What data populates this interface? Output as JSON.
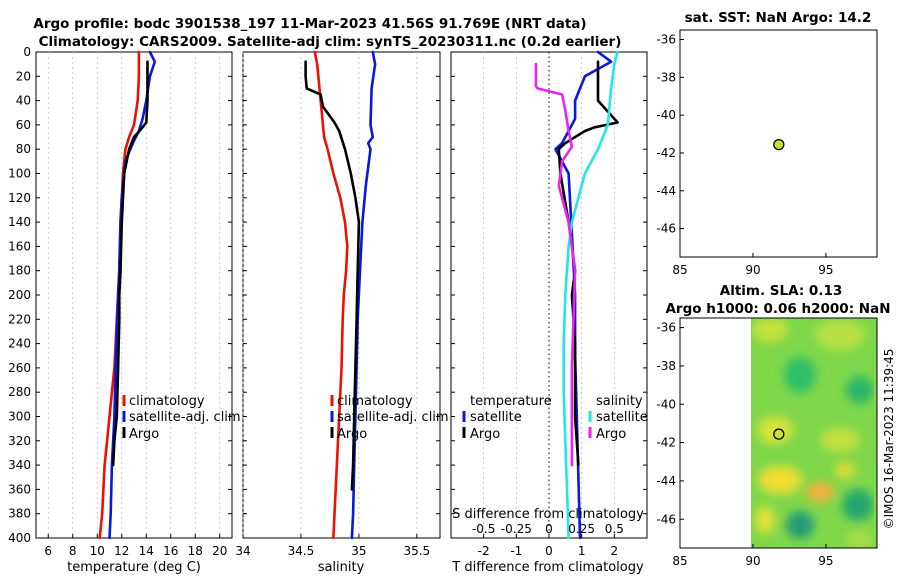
{
  "title": {
    "line1": "Argo profile: bodc 3901538_197 11-Mar-2023 41.56S 91.769E (NRT data)",
    "line2": "Climatology: CARS2009. Satellite-adj clim: synTS_20230311.nc (0.2d earlier)"
  },
  "colors": {
    "climatology": "#ee1100",
    "satellite": "#0a17dd",
    "argo": "#000000",
    "sat_salinity": "#22e6e6",
    "argo_salinity": "#ee22ee"
  },
  "chart_data": [
    {
      "type": "line",
      "name": "temperature-profile",
      "xlabel": "temperature (deg C)",
      "xlim": [
        5,
        21
      ],
      "ylim": [
        400,
        0
      ],
      "xticks": [
        "6",
        "8",
        "10",
        "12",
        "14",
        "16",
        "18",
        "20"
      ],
      "xtick_values": [
        6,
        8,
        10,
        12,
        14,
        16,
        18,
        20
      ],
      "yticks": [
        "0",
        "20",
        "40",
        "60",
        "80",
        "100",
        "120",
        "140",
        "160",
        "180",
        "200",
        "220",
        "240",
        "260",
        "280",
        "300",
        "320",
        "340",
        "360",
        "380",
        "400"
      ],
      "ytick_values": [
        0,
        20,
        40,
        60,
        80,
        100,
        120,
        140,
        160,
        180,
        200,
        220,
        240,
        260,
        280,
        300,
        320,
        340,
        360,
        380,
        400
      ],
      "legend": [
        "climatology",
        "satellite-adj. clim",
        "Argo"
      ],
      "series": [
        {
          "name": "climatology",
          "color": "#ee1100",
          "x": [
            13.4,
            13.4,
            13.3,
            13.0,
            12.6,
            12.3,
            12.1,
            11.9,
            11.8,
            11.6,
            11.4,
            11.2,
            11.0,
            10.8,
            10.6,
            10.4,
            10.2
          ],
          "y": [
            0,
            20,
            40,
            60,
            70,
            80,
            100,
            140,
            180,
            220,
            260,
            280,
            300,
            320,
            340,
            380,
            400
          ]
        },
        {
          "name": "satellite-adj. clim",
          "color": "#0a17dd",
          "x": [
            14.3,
            14.7,
            14.3,
            14.0,
            13.7,
            13.4,
            13.0,
            12.7,
            12.3,
            12.0,
            11.9,
            11.8,
            11.7,
            11.5,
            11.4,
            11.2,
            11.1,
            11.0
          ],
          "y": [
            0,
            8,
            20,
            40,
            55,
            65,
            73,
            80,
            90,
            120,
            140,
            180,
            200,
            260,
            300,
            340,
            380,
            400
          ]
        },
        {
          "name": "Argo",
          "color": "#000000",
          "x": [
            14.1,
            14.1,
            14.1,
            14.0,
            13.7,
            13.0,
            12.6,
            12.2,
            12.0,
            11.9,
            11.8,
            11.8,
            11.7,
            11.6,
            11.4,
            11.3
          ],
          "y": [
            8,
            20,
            40,
            58,
            62,
            70,
            80,
            100,
            140,
            180,
            200,
            220,
            260,
            300,
            320,
            340
          ]
        }
      ]
    },
    {
      "type": "line",
      "name": "salinity-profile",
      "xlabel": "salinity",
      "xlim": [
        34.0,
        35.7
      ],
      "ylim": [
        400,
        0
      ],
      "xticks": [
        "34",
        "34.5",
        "35",
        "35.5"
      ],
      "xtick_values": [
        34.0,
        34.5,
        35.0,
        35.5
      ],
      "legend": [
        "climatology",
        "satellite-adj. clim",
        "Argo"
      ],
      "series": [
        {
          "name": "climatology",
          "color": "#ee1100",
          "x": [
            34.62,
            34.64,
            34.66,
            34.68,
            34.7,
            34.73,
            34.78,
            34.84,
            34.88,
            34.9,
            34.89,
            34.87,
            34.86,
            34.85,
            34.83,
            34.82,
            34.8,
            34.79,
            34.78
          ],
          "y": [
            0,
            10,
            30,
            50,
            70,
            80,
            100,
            120,
            140,
            160,
            180,
            200,
            220,
            260,
            300,
            320,
            360,
            380,
            400
          ]
        },
        {
          "name": "satellite-adj. clim",
          "color": "#0a17dd",
          "x": [
            35.12,
            35.14,
            35.11,
            35.1,
            35.12,
            35.08,
            35.1,
            35.06,
            35.03,
            35.01,
            34.99,
            34.98,
            34.97,
            34.96,
            34.95,
            34.94
          ],
          "y": [
            0,
            10,
            30,
            60,
            70,
            75,
            80,
            110,
            140,
            180,
            220,
            260,
            300,
            340,
            380,
            400
          ]
        },
        {
          "name": "Argo",
          "color": "#000000",
          "x": [
            34.54,
            34.54,
            34.55,
            34.67,
            34.69,
            34.79,
            34.83,
            34.88,
            34.93,
            34.97,
            35.0,
            34.99,
            34.98,
            34.97,
            34.96,
            34.95,
            34.94
          ],
          "y": [
            8,
            20,
            30,
            35,
            45,
            58,
            65,
            80,
            100,
            120,
            140,
            180,
            220,
            260,
            300,
            340,
            360
          ]
        }
      ]
    },
    {
      "type": "line",
      "name": "difference-profile",
      "xlabel": "T difference from climatology",
      "xlabel_top": "S difference from climatology",
      "xlim": [
        -3.0,
        3.0
      ],
      "ylim": [
        400,
        0
      ],
      "xticks": [
        "-2",
        "-1",
        "0",
        "1",
        "2"
      ],
      "xtick_values": [
        -2,
        -1,
        0,
        1,
        2
      ],
      "xticks_top": [
        "-0.5",
        "-0.25",
        "0",
        "0.25",
        "0.5"
      ],
      "xtick_top_values": [
        -2,
        -1,
        0,
        1,
        2
      ],
      "legend_temperature": [
        "temperature",
        "satellite",
        "Argo"
      ],
      "legend_salinity": [
        "salinity",
        "satellite",
        "Argo"
      ],
      "series": [
        {
          "name": "temperature satellite",
          "color": "#0a17dd",
          "x": [
            1.5,
            1.9,
            1.1,
            0.8,
            0.8,
            0.6,
            0.4,
            0.2,
            0.6,
            0.7,
            0.8,
            0.8,
            0.85,
            0.9,
            0.95
          ],
          "y": [
            0,
            8,
            20,
            40,
            55,
            65,
            75,
            80,
            100,
            150,
            200,
            250,
            300,
            350,
            400
          ]
        },
        {
          "name": "temperature Argo",
          "color": "#000000",
          "x": [
            1.5,
            1.5,
            1.5,
            2.1,
            1.4,
            1.1,
            0.5,
            0.3,
            0.35,
            0.6,
            0.8,
            0.7,
            0.8,
            0.8,
            0.8,
            0.9
          ],
          "y": [
            8,
            20,
            40,
            58,
            62,
            65,
            75,
            80,
            100,
            140,
            180,
            200,
            240,
            280,
            300,
            340
          ]
        },
        {
          "name": "salinity satellite",
          "color": "#22e6e6",
          "x": [
            2.1,
            2.0,
            1.9,
            1.8,
            1.5,
            1.1,
            0.9,
            0.7,
            0.6,
            0.5,
            0.45,
            0.45,
            0.5,
            0.55,
            0.6
          ],
          "y": [
            0,
            10,
            30,
            60,
            80,
            100,
            120,
            140,
            160,
            200,
            240,
            280,
            320,
            360,
            400
          ]
        },
        {
          "name": "salinity Argo",
          "color": "#ee22ee",
          "x": [
            -0.4,
            -0.4,
            -0.35,
            0.4,
            0.5,
            0.6,
            0.7,
            0.4,
            0.3,
            0.6,
            0.8,
            0.75,
            0.7,
            0.7,
            0.7
          ],
          "y": [
            10,
            28,
            30,
            35,
            48,
            65,
            78,
            90,
            110,
            140,
            180,
            220,
            260,
            300,
            340
          ]
        }
      ]
    },
    {
      "type": "scatter",
      "name": "sat-sst-map",
      "title": "sat. SST: NaN Argo: 14.2",
      "xlim": [
        85,
        98.5
      ],
      "ylim": [
        -47.5,
        -35.5
      ],
      "xticks": [
        "85",
        "90",
        "95"
      ],
      "xtick_values": [
        85,
        90,
        95
      ],
      "yticks": [
        "-36",
        "-38",
        "-40",
        "-42",
        "-44",
        "-46"
      ],
      "ytick_values": [
        -36,
        -38,
        -40,
        -42,
        -44,
        -46
      ],
      "points": [
        {
          "x": 91.77,
          "y": -41.56
        }
      ]
    },
    {
      "type": "heatmap",
      "name": "altimetry-sla-map",
      "title_line1": "Altim. SLA: 0.13",
      "title_line2": "Argo h1000: 0.06 h2000: NaN",
      "xlim": [
        85,
        98.5
      ],
      "ylim": [
        -47.5,
        -35.5
      ],
      "xticks": [
        "85",
        "90",
        "95"
      ],
      "xtick_values": [
        85,
        90,
        95
      ],
      "yticks": [
        "-36",
        "-38",
        "-40",
        "-42",
        "-44",
        "-46"
      ],
      "ytick_values": [
        -36,
        -38,
        -40,
        -42,
        -44,
        -46
      ],
      "field_lon_range": [
        90,
        98.5
      ],
      "points": [
        {
          "x": 91.77,
          "y": -41.56
        }
      ]
    }
  ],
  "stamp": "©IMOS 16-Mar-2023 11:39:45"
}
